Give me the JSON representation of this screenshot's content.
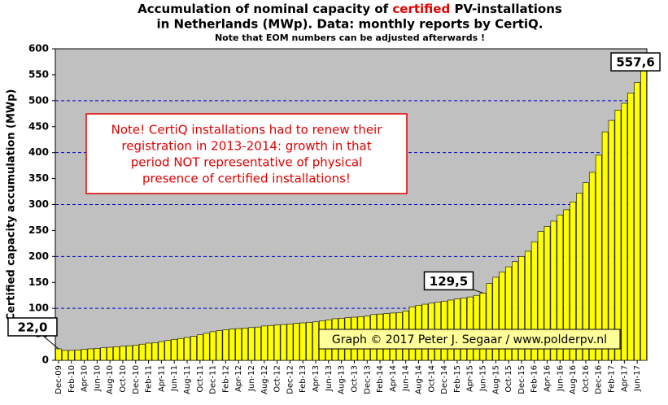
{
  "chart_data": {
    "type": "bar",
    "title": [
      "Accumulation  of nominal  capacity of ",
      "certified",
      " PV-installations"
    ],
    "title_line2": "in Netherlands (MWp). Data: monthly  reports by CertiQ.",
    "subtitle": "Note that EOM numbers can be adjusted afterwards  !",
    "ylabel": "Certified capacity accumulation (MWp)",
    "note": [
      "Note! CertiQ installations had to renew their",
      "registration in 2013-2014:  growth in that",
      "period NOT representative of physical",
      "presence of certified installations!"
    ],
    "credit": "Graph © 2017 Peter J. Segaar / www.polderpv.nl",
    "categories": [
      "Dec-09",
      null,
      "Feb-10",
      null,
      "Apr-10",
      null,
      "Jun-10",
      null,
      "Aug-10",
      null,
      "Oct-10",
      null,
      "Dec-10",
      null,
      "Feb-11",
      null,
      "Apr-11",
      null,
      "Jun-11",
      null,
      "Aug-11",
      null,
      "Oct-11",
      null,
      "Dec-11",
      null,
      "Feb-12",
      null,
      "Apr-12",
      null,
      "Jun-12",
      null,
      "Aug-12",
      null,
      "Oct-12",
      null,
      "Dec-12",
      null,
      "Feb-13",
      null,
      "Apr-13",
      null,
      "Jun-13",
      null,
      "Aug-13",
      null,
      "Oct-13",
      null,
      "Dec-13",
      null,
      "Feb-14",
      null,
      "Apr-14",
      null,
      "Jun-14",
      null,
      "Aug-14",
      null,
      "Oct-14",
      null,
      "Dec-14",
      null,
      "Feb-15",
      null,
      "Apr-15",
      null,
      "Jun-15",
      null,
      "Aug-15",
      null,
      "Oct-15",
      null,
      "Dec-15",
      null,
      "Feb-16",
      null,
      "Apr-16",
      null,
      "Jun-16",
      null,
      "Aug-16",
      null,
      "Oct-16",
      null,
      "Dec-16",
      null,
      "Feb-17",
      null,
      "Apr-17",
      null,
      "Jun-17",
      null
    ],
    "values": [
      22.0,
      19,
      19,
      20,
      21,
      22,
      23,
      24,
      25,
      26,
      27,
      28,
      29,
      31,
      33,
      34,
      36,
      38,
      40,
      42,
      44,
      46,
      49,
      52,
      55,
      57,
      59,
      60,
      61,
      62,
      63,
      64,
      66,
      67,
      68,
      69,
      70,
      71,
      72,
      73,
      74,
      76,
      78,
      80,
      81,
      82,
      83,
      84,
      85,
      88,
      89,
      90,
      91,
      92,
      95,
      103,
      106,
      108,
      110,
      112,
      114,
      116,
      118,
      120,
      122,
      125,
      129.5,
      148,
      160,
      170,
      180,
      190,
      200,
      210,
      228,
      248,
      258,
      268,
      280,
      290,
      305,
      322,
      342,
      362,
      395,
      440,
      462,
      482,
      495,
      515,
      535,
      557.6
    ],
    "value_labels": [
      "22,0",
      null,
      null,
      null,
      null,
      null,
      null,
      null,
      null,
      null,
      null,
      null,
      null,
      null,
      null,
      null,
      null,
      null,
      null,
      null,
      null,
      null,
      null,
      null,
      null,
      null,
      null,
      null,
      null,
      null,
      null,
      null,
      null,
      null,
      null,
      null,
      null,
      null,
      null,
      null,
      null,
      null,
      null,
      null,
      null,
      null,
      null,
      null,
      null,
      null,
      null,
      null,
      null,
      null,
      null,
      null,
      null,
      null,
      null,
      null,
      null,
      null,
      null,
      null,
      null,
      null,
      "129,5",
      null,
      null,
      null,
      null,
      null,
      null,
      null,
      null,
      null,
      null,
      null,
      null,
      null,
      null,
      null,
      null,
      null,
      null,
      null,
      null,
      null,
      null,
      null,
      null,
      "557,6"
    ],
    "color": "#ffff00",
    "ylim": [
      0,
      600
    ],
    "yticks": [
      0,
      50,
      100,
      150,
      200,
      250,
      300,
      350,
      400,
      450,
      500,
      550,
      600
    ],
    "grid_values": [
      100,
      200,
      300,
      400,
      500
    ],
    "grid": true
  }
}
